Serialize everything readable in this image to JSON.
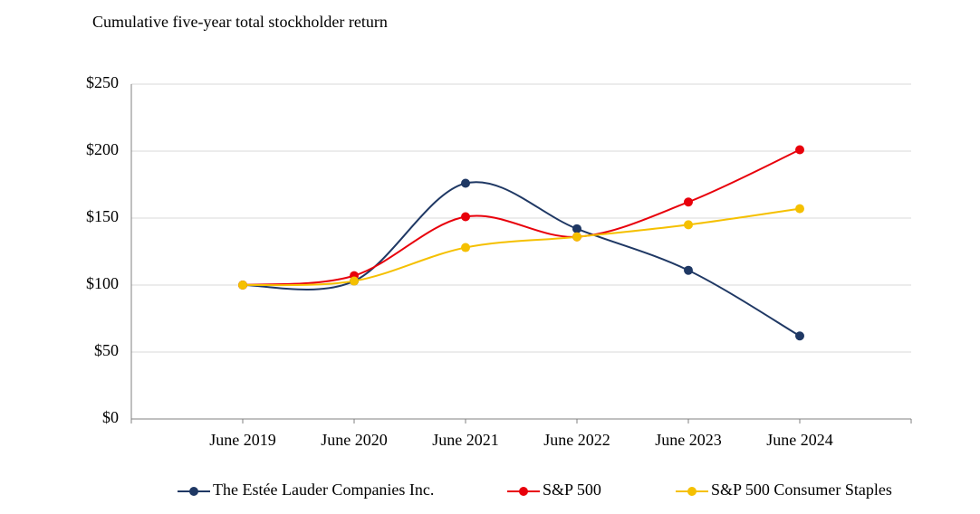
{
  "chart_data": {
    "type": "line",
    "title": "Cumulative five-year total stockholder return",
    "categories": [
      "June 2019",
      "June 2020",
      "June 2021",
      "June 2022",
      "June 2023",
      "June 2024"
    ],
    "series": [
      {
        "name": "The Estée Lauder Companies Inc.",
        "color": "#1f3864",
        "values": [
          100,
          103,
          176,
          142,
          111,
          62
        ]
      },
      {
        "name": "S&P 500",
        "color": "#e8000b",
        "values": [
          100,
          107,
          151,
          136,
          162,
          201
        ]
      },
      {
        "name": "S&P 500 Consumer Staples",
        "color": "#f5c000",
        "values": [
          100,
          103,
          128,
          136,
          145,
          157
        ]
      }
    ],
    "ylim": [
      0,
      250
    ],
    "yticks": [
      {
        "value": 0,
        "label": "$0"
      },
      {
        "value": 50,
        "label": "$50"
      },
      {
        "value": 100,
        "label": "$100"
      },
      {
        "value": 150,
        "label": "$150"
      },
      {
        "value": 200,
        "label": "$200"
      },
      {
        "value": 250,
        "label": "$250"
      }
    ],
    "grid": true,
    "smooth": true,
    "legend": "bottom"
  }
}
